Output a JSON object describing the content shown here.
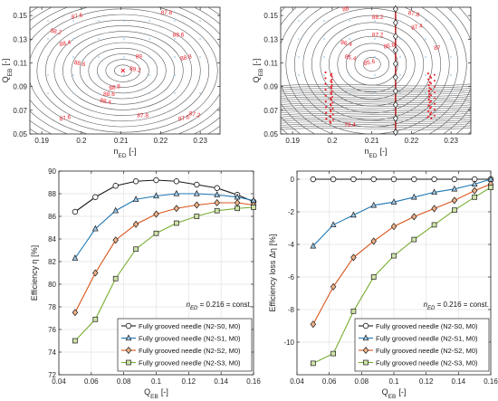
{
  "chart_data": [
    {
      "type": "contour",
      "panel": "top-left",
      "xlabel": "n",
      "xlabel_sub": "ED",
      "xlabel_unit": "[-]",
      "ylabel": "Q",
      "ylabel_sub": "EB",
      "ylabel_unit": "[-]",
      "xlim": [
        0.187,
        0.235
      ],
      "ylim": [
        0.05,
        0.157
      ],
      "xticks": [
        "0.19",
        "0.2",
        "0.21",
        "0.22",
        "0.23"
      ],
      "yticks": [
        "0.05",
        "0.07",
        "0.09",
        "0.11",
        "0.13",
        "0.15"
      ],
      "center": [
        0.2105,
        0.1035
      ],
      "contour_labels": [
        {
          "text": "87.6",
          "x": 0.199,
          "y": 0.148
        },
        {
          "text": "87.8",
          "x": 0.2215,
          "y": 0.151
        },
        {
          "text": "88.2",
          "x": 0.1935,
          "y": 0.135
        },
        {
          "text": "88.4",
          "x": 0.196,
          "y": 0.125
        },
        {
          "text": "88.6",
          "x": 0.2245,
          "y": 0.132
        },
        {
          "text": "88.6",
          "x": 0.1995,
          "y": 0.108
        },
        {
          "text": "88.8",
          "x": 0.2265,
          "y": 0.113
        },
        {
          "text": "89",
          "x": 0.2145,
          "y": 0.114
        },
        {
          "text": "89.2",
          "x": 0.2135,
          "y": 0.103
        },
        {
          "text": "88.8",
          "x": 0.2085,
          "y": 0.088
        },
        {
          "text": "88.6",
          "x": 0.207,
          "y": 0.082
        },
        {
          "text": "88.4",
          "x": 0.206,
          "y": 0.076
        },
        {
          "text": "87.6",
          "x": 0.196,
          "y": 0.062
        },
        {
          "text": "87.8",
          "x": 0.2155,
          "y": 0.064
        },
        {
          "text": "87.2",
          "x": 0.2285,
          "y": 0.065
        },
        {
          "text": "87.6",
          "x": 0.226,
          "y": 0.062
        }
      ]
    },
    {
      "type": "contour",
      "panel": "top-right",
      "xlabel": "n",
      "xlabel_sub": "ED",
      "xlabel_unit": "[-]",
      "ylabel": "Q",
      "ylabel_sub": "EB",
      "ylabel_unit": "[-]",
      "xlim": [
        0.187,
        0.235
      ],
      "ylim": [
        0.05,
        0.157
      ],
      "xticks": [
        "0.19",
        "0.2",
        "0.21",
        "0.22",
        "0.23"
      ],
      "yticks": [
        "0.05",
        "0.07",
        "0.09",
        "0.11",
        "0.13",
        "0.15"
      ],
      "vertical_line_x": 0.216,
      "contour_labels": [
        {
          "text": "88",
          "x": 0.2035,
          "y": 0.154
        },
        {
          "text": "88.2",
          "x": 0.2115,
          "y": 0.147
        },
        {
          "text": "87.8",
          "x": 0.2205,
          "y": 0.15
        },
        {
          "text": "87.4",
          "x": 0.2215,
          "y": 0.139
        },
        {
          "text": "87.2",
          "x": 0.2115,
          "y": 0.132
        },
        {
          "text": "86.4",
          "x": 0.2035,
          "y": 0.125
        },
        {
          "text": "86.8",
          "x": 0.2145,
          "y": 0.123
        },
        {
          "text": "87",
          "x": 0.2265,
          "y": 0.121
        },
        {
          "text": "85.4",
          "x": 0.2045,
          "y": 0.113
        },
        {
          "text": "85.6",
          "x": 0.2095,
          "y": 0.109
        },
        {
          "text": "78.4",
          "x": 0.2045,
          "y": 0.056
        }
      ],
      "red_point_clusters": [
        [
          0.199,
          0.06,
          0.102
        ],
        [
          0.2245,
          0.062,
          0.101
        ]
      ]
    },
    {
      "type": "line",
      "panel": "bottom-left",
      "xlabel": "Q",
      "xlabel_sub": "EB",
      "xlabel_unit": "[-]",
      "ylabel": "Efficiency η [%]",
      "xlim": [
        0.04,
        0.16
      ],
      "ylim": [
        72,
        90
      ],
      "xticks": [
        "0.04",
        "0.06",
        "0.08",
        "0.1",
        "0.12",
        "0.14",
        "0.16"
      ],
      "yticks": [
        "72",
        "74",
        "76",
        "78",
        "80",
        "82",
        "84",
        "86",
        "88",
        "90"
      ],
      "grid": true,
      "annotation": "n",
      "annotation_sub": "ED",
      "annotation_rest": " = 0.216 = const.",
      "legend": "bottom-right",
      "x": [
        0.05,
        0.0625,
        0.075,
        0.0875,
        0.1,
        0.1125,
        0.125,
        0.1375,
        0.15,
        0.16
      ],
      "series": [
        {
          "name": "Fully grooved needle (N2-S0, M0)",
          "color": "#1a1a1a",
          "marker": "circle",
          "values": [
            86.4,
            87.7,
            88.7,
            89.1,
            89.2,
            89.1,
            88.8,
            88.5,
            87.9,
            87.3
          ]
        },
        {
          "name": "Fully grooved needle (N2-S1, M0)",
          "color": "#1f77b4",
          "marker": "triangle",
          "values": [
            82.3,
            84.9,
            86.5,
            87.5,
            87.8,
            88.0,
            88.0,
            87.9,
            87.7,
            87.4
          ]
        },
        {
          "name": "Fully grooved needle (N2-S2, M0)",
          "color": "#d95319",
          "marker": "diamond",
          "values": [
            77.5,
            81.0,
            83.9,
            85.3,
            86.2,
            86.7,
            87.0,
            87.2,
            87.2,
            87.0
          ]
        },
        {
          "name": "Fully grooved needle (N2-S3, M0)",
          "color": "#77ac30",
          "marker": "square",
          "values": [
            75.0,
            76.9,
            80.5,
            83.1,
            84.5,
            85.4,
            86.0,
            86.5,
            86.7,
            86.8
          ]
        }
      ]
    },
    {
      "type": "line",
      "panel": "bottom-right",
      "xlabel": "Q",
      "xlabel_sub": "EB",
      "xlabel_unit": "[-]",
      "ylabel": "Efficiency loss Δη [%]",
      "xlim": [
        0.04,
        0.16
      ],
      "ylim": [
        -12,
        0.5
      ],
      "xticks": [
        "0.04",
        "0.06",
        "0.08",
        "0.1",
        "0.12",
        "0.14",
        "0.16"
      ],
      "yticks": [
        "-10",
        "-8",
        "-6",
        "-4",
        "-2",
        "0"
      ],
      "grid": true,
      "annotation": "n",
      "annotation_sub": "ED",
      "annotation_rest": " = 0.216 = const.",
      "legend": "bottom-right",
      "x": [
        0.05,
        0.0625,
        0.075,
        0.0875,
        0.1,
        0.1125,
        0.125,
        0.1375,
        0.15,
        0.16
      ],
      "series": [
        {
          "name": "Fully grooved needle (N2-S0, M0)",
          "color": "#1a1a1a",
          "marker": "circle",
          "values": [
            0,
            0,
            0,
            0,
            0,
            0,
            0,
            0,
            0,
            0
          ]
        },
        {
          "name": "Fully grooved needle (N2-S1, M0)",
          "color": "#1f77b4",
          "marker": "triangle",
          "values": [
            -4.1,
            -2.8,
            -2.2,
            -1.6,
            -1.4,
            -1.1,
            -0.8,
            -0.6,
            -0.3,
            0.0
          ]
        },
        {
          "name": "Fully grooved needle (N2-S2, M0)",
          "color": "#d95319",
          "marker": "diamond",
          "values": [
            -8.9,
            -6.6,
            -4.8,
            -3.8,
            -2.9,
            -2.3,
            -1.8,
            -1.3,
            -0.7,
            -0.3
          ]
        },
        {
          "name": "Fully grooved needle (N2-S3, M0)",
          "color": "#77ac30",
          "marker": "square",
          "values": [
            -11.3,
            -10.7,
            -8.1,
            -6.0,
            -4.7,
            -3.7,
            -2.8,
            -1.9,
            -1.1,
            -0.5
          ]
        }
      ]
    }
  ]
}
